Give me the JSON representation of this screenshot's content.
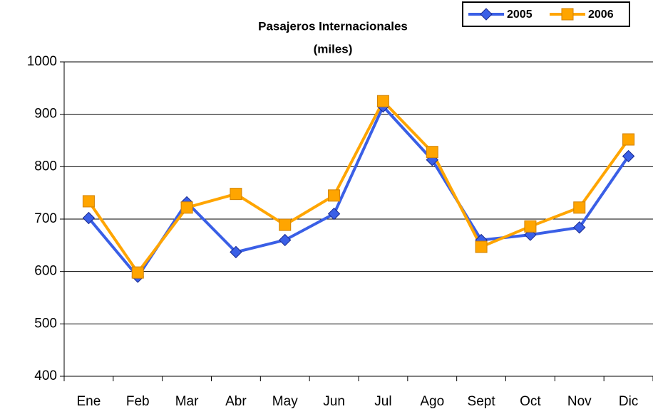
{
  "chart_data": {
    "type": "line",
    "title": "Pasajeros Internacionales",
    "subtitle": "(miles)",
    "categories": [
      "Ene",
      "Feb",
      "Mar",
      "Abr",
      "May",
      "Jun",
      "Jul",
      "Ago",
      "Sept",
      "Oct",
      "Nov",
      "Dic"
    ],
    "series": [
      {
        "name": "2005",
        "color": "#3a5fe6",
        "marker": "diamond",
        "values": [
          702,
          590,
          732,
          637,
          660,
          710,
          915,
          813,
          660,
          670,
          684,
          820
        ]
      },
      {
        "name": "2006",
        "color": "#ffa500",
        "marker": "square",
        "values": [
          734,
          598,
          722,
          748,
          689,
          745,
          925,
          828,
          647,
          686,
          722,
          852
        ]
      }
    ],
    "ylim": [
      400,
      1000
    ],
    "yticks": [
      400,
      500,
      600,
      700,
      800,
      900,
      1000
    ],
    "grid": true,
    "legend": "top-right"
  }
}
